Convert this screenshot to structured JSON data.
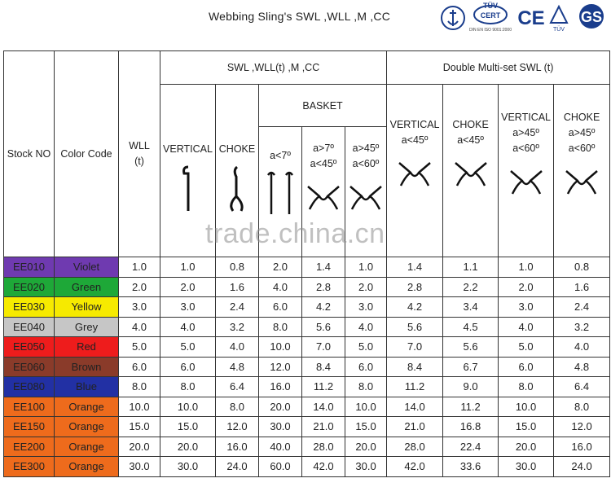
{
  "header": {
    "title": "Webbing Sling's  SWL ,WLL ,M ,CC",
    "logos": [
      "TÜV",
      "CERT",
      "DIN EN ISO 9001:2000",
      "CE",
      "TÜV",
      "GS"
    ]
  },
  "watermark": "trade.china.cn",
  "table": {
    "head": {
      "stock": "Stock NO",
      "color": "Color Code",
      "wll": [
        "WLL",
        "(t)"
      ],
      "swl_group": "SWL ,WLL(t) ,M ,CC",
      "double_group": "Double Multi-set SWL (t)",
      "vertical": "VERTICAL",
      "choke": "CHOKE",
      "basket": "BASKET",
      "basket_cols": [
        [
          "a<7º"
        ],
        [
          "a>7º",
          "a<45º"
        ],
        [
          "a>45º",
          "a<60º"
        ]
      ],
      "double_cols": [
        [
          "VERTICAL",
          "a<45º"
        ],
        [
          "CHOKE",
          "a<45º"
        ],
        [
          "VERTICAL",
          "a>45º",
          "a<60º"
        ],
        [
          "CHOKE",
          "a>45º",
          "a<60º"
        ]
      ]
    },
    "row_colors": [
      "#6f3ab0",
      "#1ea838",
      "#f6ea00",
      "#c6c6c6",
      "#ee1c1c",
      "#8a3b2a",
      "#2230a4",
      "#ee6b1c",
      "#ee6b1c",
      "#ee6b1c",
      "#ee6b1c"
    ],
    "rows": [
      [
        "EE010",
        "Violet",
        "1.0",
        "1.0",
        "0.8",
        "2.0",
        "1.4",
        "1.0",
        "1.4",
        "1.1",
        "1.0",
        "0.8"
      ],
      [
        "EE020",
        "Green",
        "2.0",
        "2.0",
        "1.6",
        "4.0",
        "2.8",
        "2.0",
        "2.8",
        "2.2",
        "2.0",
        "1.6"
      ],
      [
        "EE030",
        "Yellow",
        "3.0",
        "3.0",
        "2.4",
        "6.0",
        "4.2",
        "3.0",
        "4.2",
        "3.4",
        "3.0",
        "2.4"
      ],
      [
        "EE040",
        "Grey",
        "4.0",
        "4.0",
        "3.2",
        "8.0",
        "5.6",
        "4.0",
        "5.6",
        "4.5",
        "4.0",
        "3.2"
      ],
      [
        "EE050",
        "Red",
        "5.0",
        "5.0",
        "4.0",
        "10.0",
        "7.0",
        "5.0",
        "7.0",
        "5.6",
        "5.0",
        "4.0"
      ],
      [
        "EE060",
        "Brown",
        "6.0",
        "6.0",
        "4.8",
        "12.0",
        "8.4",
        "6.0",
        "8.4",
        "6.7",
        "6.0",
        "4.8"
      ],
      [
        "EE080",
        "Blue",
        "8.0",
        "8.0",
        "6.4",
        "16.0",
        "11.2",
        "8.0",
        "11.2",
        "9.0",
        "8.0",
        "6.4"
      ],
      [
        "EE100",
        "Orange",
        "10.0",
        "10.0",
        "8.0",
        "20.0",
        "14.0",
        "10.0",
        "14.0",
        "11.2",
        "10.0",
        "8.0"
      ],
      [
        "EE150",
        "Orange",
        "15.0",
        "15.0",
        "12.0",
        "30.0",
        "21.0",
        "15.0",
        "21.0",
        "16.8",
        "15.0",
        "12.0"
      ],
      [
        "EE200",
        "Orange",
        "20.0",
        "20.0",
        "16.0",
        "40.0",
        "28.0",
        "20.0",
        "28.0",
        "22.4",
        "20.0",
        "16.0"
      ],
      [
        "EE300",
        "Orange",
        "30.0",
        "30.0",
        "24.0",
        "60.0",
        "42.0",
        "30.0",
        "42.0",
        "33.6",
        "30.0",
        "24.0"
      ]
    ]
  }
}
